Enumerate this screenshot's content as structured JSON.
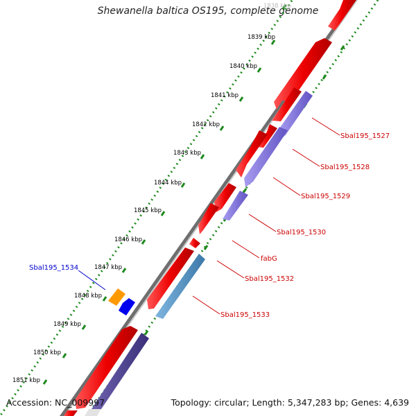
{
  "title": "Shewanella baltica OS195, complete genome",
  "footer": {
    "accession_label": "Accession:",
    "accession": "NC_009997",
    "topology_label": "Topology:",
    "topology": "circular",
    "length_label": "Length:",
    "length": "5,347,283 bp",
    "genes_label": "Genes:",
    "genes": "4,639"
  },
  "ticks": [
    "1838 kbp",
    "1839 kbp",
    "1840 kbp",
    "1841 kbp",
    "1842 kbp",
    "1843 kbp",
    "1844 kbp",
    "1845 kbp",
    "1846 kbp",
    "1847 kbp",
    "1848 kbp",
    "1849 kbp",
    "1850 kbp",
    "1851 kbp"
  ],
  "gene_labels": [
    {
      "text": "Sbal195_1527",
      "color": "#cc0000"
    },
    {
      "text": "Sbal195_1528",
      "color": "#cc0000"
    },
    {
      "text": "Sbal195_1529",
      "color": "#cc0000"
    },
    {
      "text": "Sbal195_1530",
      "color": "#cc0000"
    },
    {
      "text": "fabG",
      "color": "#cc0000"
    },
    {
      "text": "Sbal195_1532",
      "color": "#cc0000"
    },
    {
      "text": "Sbal195_1533",
      "color": "#cc0000"
    },
    {
      "text": "Sbal195_1534",
      "color": "#0000cc"
    }
  ],
  "colors": {
    "backbone": "#777777",
    "ruler": "#1f8a1f",
    "gene_red": "#ee0000",
    "gene_purple": "#7b6fd6",
    "gene_steel": "#4f8fc4",
    "gene_dark_purple": "#4c3f8f",
    "gene_orange": "#ff9900",
    "gene_blue": "#0000ee"
  }
}
